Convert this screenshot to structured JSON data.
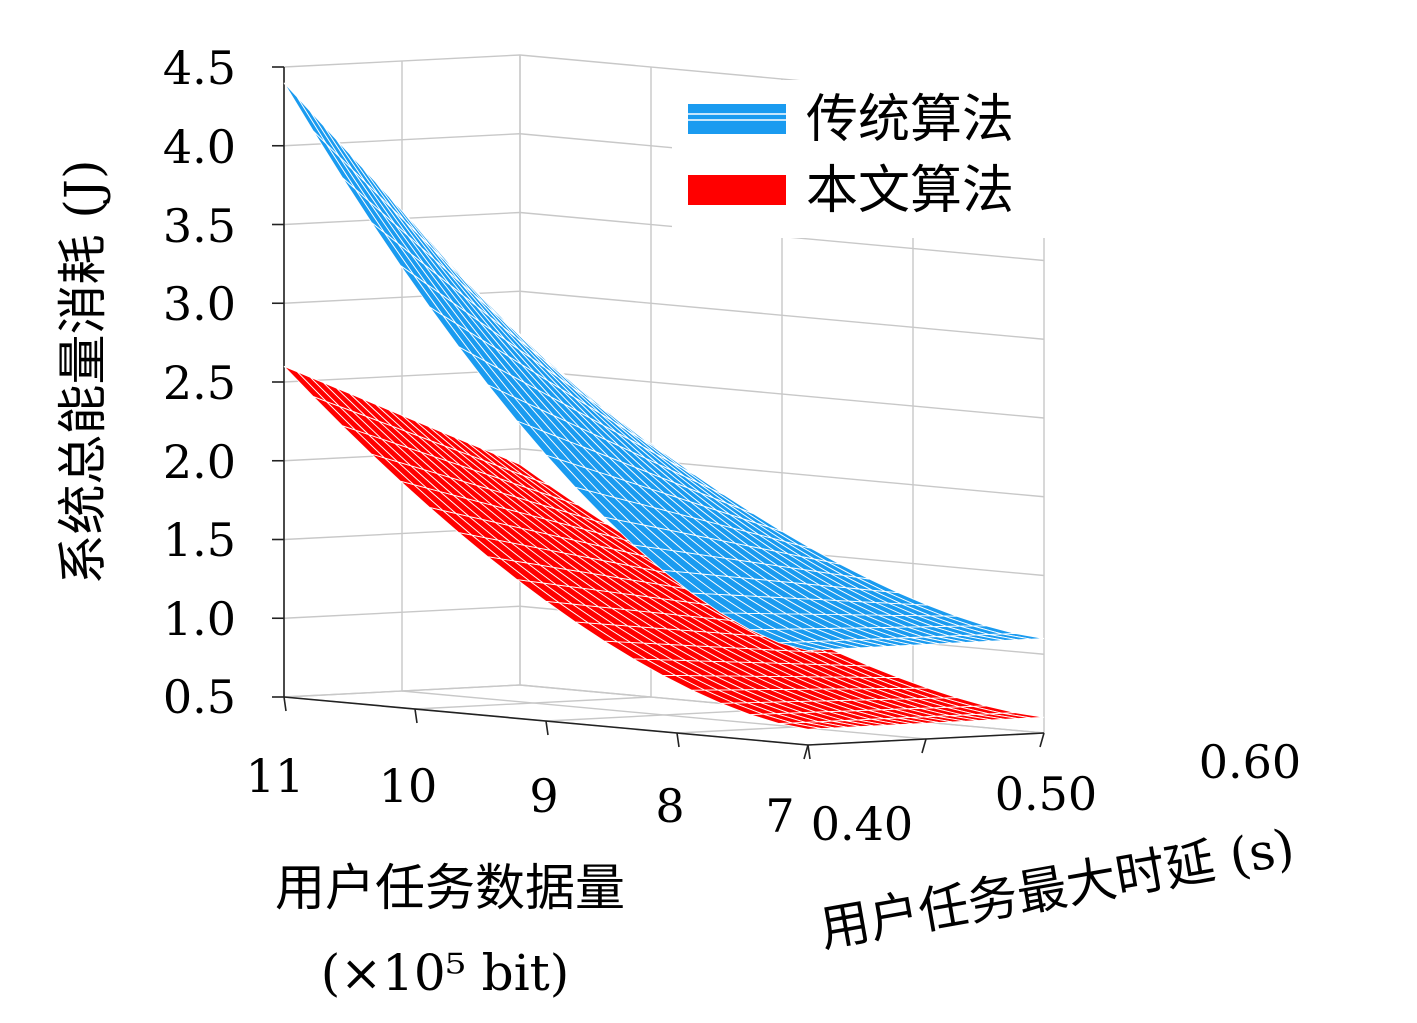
{
  "chart_data": {
    "type": "surface3d",
    "zlabel": "系统总能量消耗 (J)",
    "xlabel_line1": "用户任务数据量",
    "xlabel_line2": "(×10⁵ bit)",
    "ylabel": "用户任务最大时延 (s)",
    "x_ticks": [
      "11",
      "10",
      "9",
      "8",
      "7"
    ],
    "y_ticks": [
      "0.40",
      "0.50",
      "0.60"
    ],
    "z_ticks": [
      "4.5",
      "4.0",
      "3.5",
      "3.0",
      "2.5",
      "2.0",
      "1.5",
      "1.0",
      "0.5"
    ],
    "x_range": [
      7,
      11
    ],
    "y_range": [
      0.4,
      0.6
    ],
    "zlim": [
      0.5,
      4.5
    ],
    "grid": true,
    "legend_position": "top-right",
    "series": [
      {
        "name": "传统算法",
        "color": "#1a9bf0",
        "corner_values": {
          "x11_y0.40": 4.4,
          "x7_y0.40": 1.1,
          "x11_y0.60": 2.7,
          "x7_y0.60": 1.1
        }
      },
      {
        "name": "本文算法",
        "color": "#ff0000",
        "corner_values": {
          "x11_y0.40": 2.6,
          "x7_y0.40": 0.6,
          "x11_y0.60": 1.9,
          "x7_y0.60": 0.6
        }
      }
    ]
  }
}
